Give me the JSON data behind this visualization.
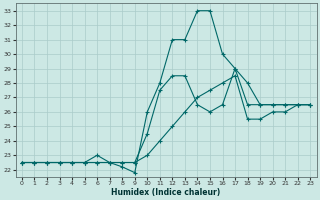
{
  "xlabel": "Humidex (Indice chaleur)",
  "bg_color": "#cce8e4",
  "grid_color": "#aaccca",
  "line_color": "#006868",
  "xlim": [
    -0.5,
    23.5
  ],
  "ylim": [
    21.5,
    33.5
  ],
  "xticks": [
    0,
    1,
    2,
    3,
    4,
    5,
    6,
    7,
    8,
    9,
    10,
    11,
    12,
    13,
    14,
    15,
    16,
    17,
    18,
    19,
    20,
    21,
    22,
    23
  ],
  "yticks": [
    22,
    23,
    24,
    25,
    26,
    27,
    28,
    29,
    30,
    31,
    32,
    33
  ],
  "series": {
    "line_peak_x": [
      0,
      1,
      2,
      3,
      4,
      5,
      6,
      7,
      8,
      9,
      10,
      11,
      12,
      13,
      14,
      15,
      16,
      17,
      18,
      19,
      20,
      21,
      22,
      23
    ],
    "line_peak_y": [
      22.5,
      22.5,
      22.5,
      22.5,
      22.5,
      22.5,
      22.5,
      22.5,
      22.2,
      21.8,
      26.0,
      28.0,
      31.0,
      31.0,
      33.0,
      33.0,
      30.0,
      29.0,
      26.5,
      26.5,
      26.5,
      26.5,
      26.5,
      26.5
    ],
    "line_mid_x": [
      0,
      1,
      2,
      3,
      4,
      5,
      6,
      7,
      8,
      9,
      10,
      11,
      12,
      13,
      14,
      15,
      16,
      17,
      18,
      19,
      20,
      21,
      22,
      23
    ],
    "line_mid_y": [
      22.5,
      22.5,
      22.5,
      22.5,
      22.5,
      22.5,
      23.0,
      22.5,
      22.5,
      22.5,
      24.5,
      27.5,
      28.5,
      28.5,
      26.5,
      26.0,
      26.5,
      29.0,
      28.0,
      26.5,
      26.5,
      26.5,
      26.5,
      26.5
    ],
    "line_flat_x": [
      0,
      1,
      2,
      3,
      4,
      5,
      6,
      7,
      8,
      9,
      10,
      11,
      12,
      13,
      14,
      15,
      16,
      17,
      18,
      19,
      20,
      21,
      22,
      23
    ],
    "line_flat_y": [
      22.5,
      22.5,
      22.5,
      22.5,
      22.5,
      22.5,
      22.5,
      22.5,
      22.5,
      22.5,
      23.0,
      24.0,
      25.0,
      26.0,
      27.0,
      27.5,
      28.0,
      28.5,
      25.5,
      25.5,
      26.0,
      26.0,
      26.5,
      26.5
    ]
  }
}
